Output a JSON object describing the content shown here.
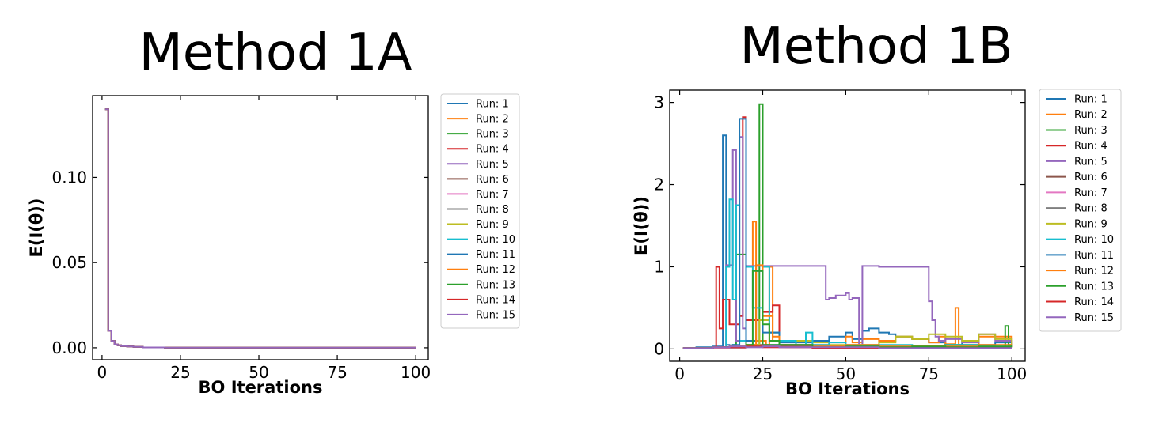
{
  "figure": {
    "charts_order": [
      "Method 1A",
      "Method 1B"
    ]
  },
  "chart_data": [
    {
      "type": "line",
      "step": true,
      "title": "Method 1A",
      "xlabel": "BO Iterations",
      "ylabel": "E(I(θ))",
      "xlim": [
        -3,
        104
      ],
      "ylim": [
        -0.007,
        0.148
      ],
      "xticks": [
        0,
        25,
        50,
        75,
        100
      ],
      "xtick_labels": [
        "0",
        "25",
        "50",
        "75",
        "100"
      ],
      "yticks": [
        0.0,
        0.05,
        0.1
      ],
      "ytick_labels": [
        "0.00",
        "0.05",
        "0.10"
      ],
      "grid": false,
      "legend": "outside-right",
      "series": [
        {
          "name": "Run: 1",
          "color": "#1f77b4",
          "x": [
            1,
            2,
            3,
            4,
            5,
            6,
            8,
            10,
            13,
            20,
            100
          ],
          "y": [
            0.14,
            0.01,
            0.004,
            0.002,
            0.0015,
            0.001,
            0.0008,
            0.0005,
            0.0002,
            0.0001,
            0.0001
          ]
        },
        {
          "name": "Run: 2",
          "color": "#ff7f0e",
          "x": [
            1,
            2,
            3,
            4,
            5,
            6,
            8,
            10,
            13,
            20,
            100
          ],
          "y": [
            0.14,
            0.01,
            0.004,
            0.002,
            0.0015,
            0.001,
            0.0008,
            0.0005,
            0.0002,
            0.0001,
            0.0001
          ]
        },
        {
          "name": "Run: 3",
          "color": "#2ca02c",
          "x": [
            1,
            2,
            3,
            4,
            5,
            6,
            8,
            10,
            13,
            20,
            100
          ],
          "y": [
            0.14,
            0.01,
            0.004,
            0.002,
            0.0015,
            0.001,
            0.0008,
            0.0005,
            0.0002,
            0.0001,
            0.0001
          ]
        },
        {
          "name": "Run: 4",
          "color": "#d62728",
          "x": [
            1,
            2,
            3,
            4,
            5,
            6,
            8,
            10,
            13,
            20,
            100
          ],
          "y": [
            0.14,
            0.01,
            0.004,
            0.002,
            0.0015,
            0.001,
            0.0008,
            0.0005,
            0.0002,
            0.0001,
            0.0001
          ]
        },
        {
          "name": "Run: 5",
          "color": "#9467bd",
          "x": [
            1,
            2,
            3,
            4,
            5,
            6,
            8,
            10,
            13,
            20,
            100
          ],
          "y": [
            0.14,
            0.01,
            0.004,
            0.002,
            0.0015,
            0.001,
            0.0008,
            0.0005,
            0.0002,
            0.0001,
            0.0001
          ]
        },
        {
          "name": "Run: 6",
          "color": "#8c564b",
          "x": [
            1,
            2,
            3,
            4,
            5,
            6,
            8,
            10,
            13,
            20,
            100
          ],
          "y": [
            0.14,
            0.01,
            0.004,
            0.002,
            0.0015,
            0.001,
            0.0008,
            0.0005,
            0.0002,
            0.0001,
            0.0001
          ]
        },
        {
          "name": "Run: 7",
          "color": "#e377c2",
          "x": [
            1,
            2,
            3,
            4,
            5,
            6,
            8,
            10,
            13,
            20,
            100
          ],
          "y": [
            0.14,
            0.01,
            0.004,
            0.002,
            0.0015,
            0.001,
            0.0008,
            0.0005,
            0.0002,
            0.0001,
            0.0001
          ]
        },
        {
          "name": "Run: 8",
          "color": "#7f7f7f",
          "x": [
            1,
            2,
            3,
            4,
            5,
            6,
            8,
            10,
            13,
            20,
            100
          ],
          "y": [
            0.14,
            0.01,
            0.004,
            0.002,
            0.0015,
            0.001,
            0.0008,
            0.0005,
            0.0002,
            0.0001,
            0.0001
          ]
        },
        {
          "name": "Run: 9",
          "color": "#bcbd22",
          "x": [
            1,
            2,
            3,
            4,
            5,
            6,
            8,
            10,
            13,
            20,
            100
          ],
          "y": [
            0.14,
            0.01,
            0.004,
            0.002,
            0.0015,
            0.001,
            0.0008,
            0.0005,
            0.0002,
            0.0001,
            0.0001
          ]
        },
        {
          "name": "Run: 10",
          "color": "#17becf",
          "x": [
            1,
            2,
            3,
            4,
            5,
            6,
            8,
            10,
            13,
            20,
            100
          ],
          "y": [
            0.14,
            0.01,
            0.004,
            0.002,
            0.0015,
            0.001,
            0.0008,
            0.0005,
            0.0002,
            0.0001,
            0.0001
          ]
        },
        {
          "name": "Run: 11",
          "color": "#1f77b4",
          "x": [
            1,
            2,
            3,
            4,
            5,
            6,
            8,
            10,
            13,
            20,
            100
          ],
          "y": [
            0.14,
            0.01,
            0.004,
            0.002,
            0.0015,
            0.001,
            0.0008,
            0.0005,
            0.0002,
            0.0001,
            0.0001
          ]
        },
        {
          "name": "Run: 12",
          "color": "#ff7f0e",
          "x": [
            1,
            2,
            3,
            4,
            5,
            6,
            8,
            10,
            13,
            20,
            100
          ],
          "y": [
            0.14,
            0.01,
            0.004,
            0.002,
            0.0015,
            0.001,
            0.0008,
            0.0005,
            0.0002,
            0.0001,
            0.0001
          ]
        },
        {
          "name": "Run: 13",
          "color": "#2ca02c",
          "x": [
            1,
            2,
            3,
            4,
            5,
            6,
            8,
            10,
            13,
            20,
            100
          ],
          "y": [
            0.14,
            0.01,
            0.004,
            0.002,
            0.0015,
            0.001,
            0.0008,
            0.0005,
            0.0002,
            0.0001,
            0.0001
          ]
        },
        {
          "name": "Run: 14",
          "color": "#d62728",
          "x": [
            1,
            2,
            3,
            4,
            5,
            6,
            8,
            10,
            13,
            20,
            100
          ],
          "y": [
            0.14,
            0.01,
            0.004,
            0.002,
            0.0015,
            0.001,
            0.0008,
            0.0005,
            0.0002,
            0.0001,
            0.0001
          ]
        },
        {
          "name": "Run: 15",
          "color": "#9467bd",
          "x": [
            1,
            2,
            3,
            4,
            5,
            6,
            8,
            10,
            13,
            20,
            100
          ],
          "y": [
            0.14,
            0.01,
            0.004,
            0.002,
            0.0015,
            0.001,
            0.0008,
            0.0005,
            0.0002,
            0.0001,
            0.0001
          ]
        }
      ]
    },
    {
      "type": "line",
      "step": true,
      "title": "Method 1B",
      "xlabel": "BO Iterations",
      "ylabel": "E(I(θ))",
      "xlim": [
        -3,
        104
      ],
      "ylim": [
        -0.15,
        3.15
      ],
      "xticks": [
        0,
        25,
        50,
        75,
        100
      ],
      "xtick_labels": [
        "0",
        "25",
        "50",
        "75",
        "100"
      ],
      "yticks": [
        0,
        1,
        2,
        3
      ],
      "ytick_labels": [
        "0",
        "1",
        "2",
        "3"
      ],
      "grid": false,
      "legend": "outside-right",
      "series": [
        {
          "name": "Run: 1",
          "color": "#1f77b4",
          "x": [
            1,
            5,
            10,
            13,
            14,
            15,
            20,
            25,
            30,
            40,
            45,
            50,
            52,
            55,
            57,
            60,
            63,
            65,
            70,
            75,
            80,
            85,
            90,
            95,
            100
          ],
          "y": [
            0.01,
            0.02,
            0.03,
            2.6,
            0.05,
            0.02,
            0.1,
            0.05,
            0.08,
            0.1,
            0.15,
            0.2,
            0.12,
            0.22,
            0.25,
            0.2,
            0.18,
            0.15,
            0.12,
            0.08,
            0.05,
            0.1,
            0.05,
            0.08,
            0.05
          ]
        },
        {
          "name": "Run: 2",
          "color": "#ff7f0e",
          "x": [
            1,
            10,
            15,
            20,
            22,
            23,
            26,
            27,
            28,
            30,
            45,
            50,
            52,
            55,
            60,
            65,
            70,
            75,
            78,
            80,
            83,
            84,
            90,
            100
          ],
          "y": [
            0.01,
            0.02,
            0.03,
            1.0,
            1.55,
            0.1,
            0.05,
            1.0,
            0.1,
            0.05,
            0.08,
            0.15,
            0.08,
            0.12,
            0.1,
            0.15,
            0.12,
            0.08,
            0.15,
            0.06,
            0.5,
            0.05,
            0.15,
            0.05
          ]
        },
        {
          "name": "Run: 3",
          "color": "#2ca02c",
          "x": [
            1,
            10,
            16,
            17,
            20,
            24,
            25,
            30,
            40,
            50,
            60,
            70,
            80,
            90,
            98,
            99,
            100
          ],
          "y": [
            0.01,
            0.02,
            0.05,
            1.15,
            0.05,
            2.98,
            0.05,
            0.02,
            0.03,
            0.04,
            0.02,
            0.03,
            0.05,
            0.02,
            0.28,
            0.05,
            0.02
          ]
        },
        {
          "name": "Run: 4",
          "color": "#d62728",
          "x": [
            1,
            10,
            11,
            12,
            13,
            15,
            18,
            19,
            20,
            25,
            28,
            30,
            32,
            40,
            60,
            100
          ],
          "y": [
            0.01,
            0.02,
            1.0,
            0.25,
            0.6,
            0.3,
            0.4,
            2.82,
            0.35,
            0.45,
            0.53,
            0.05,
            0.02,
            0.02,
            0.02,
            0.02
          ]
        },
        {
          "name": "Run: 5",
          "color": "#9467bd",
          "x": [
            1,
            10,
            14,
            16,
            17,
            18,
            19,
            20,
            25,
            30,
            40,
            44,
            45,
            47,
            50,
            51,
            52,
            54,
            55,
            60,
            75,
            76,
            77,
            78,
            80,
            85,
            90,
            95,
            100
          ],
          "y": [
            0.01,
            0.02,
            1.02,
            2.42,
            0.1,
            2.58,
            0.25,
            1.01,
            1.01,
            1.01,
            1.01,
            0.6,
            0.62,
            0.65,
            0.68,
            0.6,
            0.62,
            0.05,
            1.01,
            1.0,
            0.58,
            0.35,
            0.15,
            0.1,
            0.12,
            0.08,
            0.18,
            0.1,
            0.05
          ]
        },
        {
          "name": "Run: 6",
          "color": "#8c564b",
          "x": [
            1,
            10,
            15,
            20,
            25,
            30,
            40,
            60,
            80,
            100
          ],
          "y": [
            0.01,
            0.02,
            0.03,
            0.05,
            0.04,
            0.03,
            0.02,
            0.02,
            0.02,
            0.02
          ]
        },
        {
          "name": "Run: 7",
          "color": "#e377c2",
          "x": [
            1,
            10,
            20,
            30,
            40,
            60,
            80,
            100
          ],
          "y": [
            0.01,
            0.01,
            0.02,
            0.02,
            0.01,
            0.01,
            0.01,
            0.01
          ]
        },
        {
          "name": "Run: 8",
          "color": "#7f7f7f",
          "x": [
            1,
            10,
            20,
            30,
            40,
            60,
            80,
            100
          ],
          "y": [
            0.01,
            0.02,
            0.03,
            0.05,
            0.04,
            0.03,
            0.02,
            0.02
          ]
        },
        {
          "name": "Run: 9",
          "color": "#bcbd22",
          "x": [
            1,
            10,
            20,
            24,
            27,
            30,
            40,
            45,
            60,
            65,
            70,
            75,
            80,
            85,
            90,
            95,
            100
          ],
          "y": [
            0.01,
            0.02,
            0.05,
            0.35,
            0.2,
            0.1,
            0.08,
            0.05,
            0.08,
            0.15,
            0.12,
            0.18,
            0.15,
            0.1,
            0.18,
            0.12,
            0.05
          ]
        },
        {
          "name": "Run: 10",
          "color": "#17becf",
          "x": [
            1,
            10,
            14,
            15,
            16,
            17,
            18,
            20,
            22,
            25,
            27,
            30,
            35,
            38,
            40,
            45,
            50,
            60,
            70,
            80,
            90,
            100
          ],
          "y": [
            0.01,
            0.02,
            1.0,
            1.82,
            0.6,
            1.75,
            0.1,
            1.0,
            0.5,
            1.0,
            0.2,
            0.1,
            0.05,
            0.2,
            0.05,
            0.08,
            0.05,
            0.05,
            0.03,
            0.05,
            0.03,
            0.02
          ]
        },
        {
          "name": "Run: 11",
          "color": "#1f77b4",
          "x": [
            1,
            10,
            16,
            18,
            20,
            23,
            25,
            30,
            40,
            50,
            60,
            70,
            80,
            90,
            100
          ],
          "y": [
            0.01,
            0.02,
            0.05,
            2.8,
            0.1,
            0.95,
            0.2,
            0.05,
            0.02,
            0.03,
            0.02,
            0.02,
            0.02,
            0.02,
            0.02
          ]
        },
        {
          "name": "Run: 12",
          "color": "#ff7f0e",
          "x": [
            1,
            10,
            20,
            23,
            25,
            28,
            30,
            40,
            50,
            60,
            70,
            80,
            90,
            100
          ],
          "y": [
            0.01,
            0.02,
            0.05,
            1.02,
            0.4,
            0.15,
            0.05,
            0.03,
            0.05,
            0.03,
            0.04,
            0.03,
            0.05,
            0.02
          ]
        },
        {
          "name": "Run: 13",
          "color": "#2ca02c",
          "x": [
            1,
            10,
            20,
            22,
            25,
            27,
            30,
            40,
            50,
            60,
            70,
            80,
            90,
            100
          ],
          "y": [
            0.01,
            0.02,
            0.05,
            0.95,
            0.3,
            0.1,
            0.05,
            0.02,
            0.03,
            0.02,
            0.03,
            0.02,
            0.03,
            0.05
          ]
        },
        {
          "name": "Run: 14",
          "color": "#d62728",
          "x": [
            1,
            10,
            15,
            20,
            25,
            30,
            40,
            50,
            60,
            70,
            80,
            90,
            100
          ],
          "y": [
            0.01,
            0.02,
            0.02,
            0.03,
            0.02,
            0.02,
            0.01,
            0.01,
            0.01,
            0.01,
            0.01,
            0.01,
            0.01
          ]
        },
        {
          "name": "Run: 15",
          "color": "#9467bd",
          "x": [
            1,
            10,
            15,
            20,
            25,
            30,
            40,
            60,
            80,
            100
          ],
          "y": [
            0.01,
            0.02,
            0.03,
            0.02,
            0.03,
            0.02,
            0.02,
            0.01,
            0.01,
            0.01
          ]
        }
      ]
    }
  ]
}
